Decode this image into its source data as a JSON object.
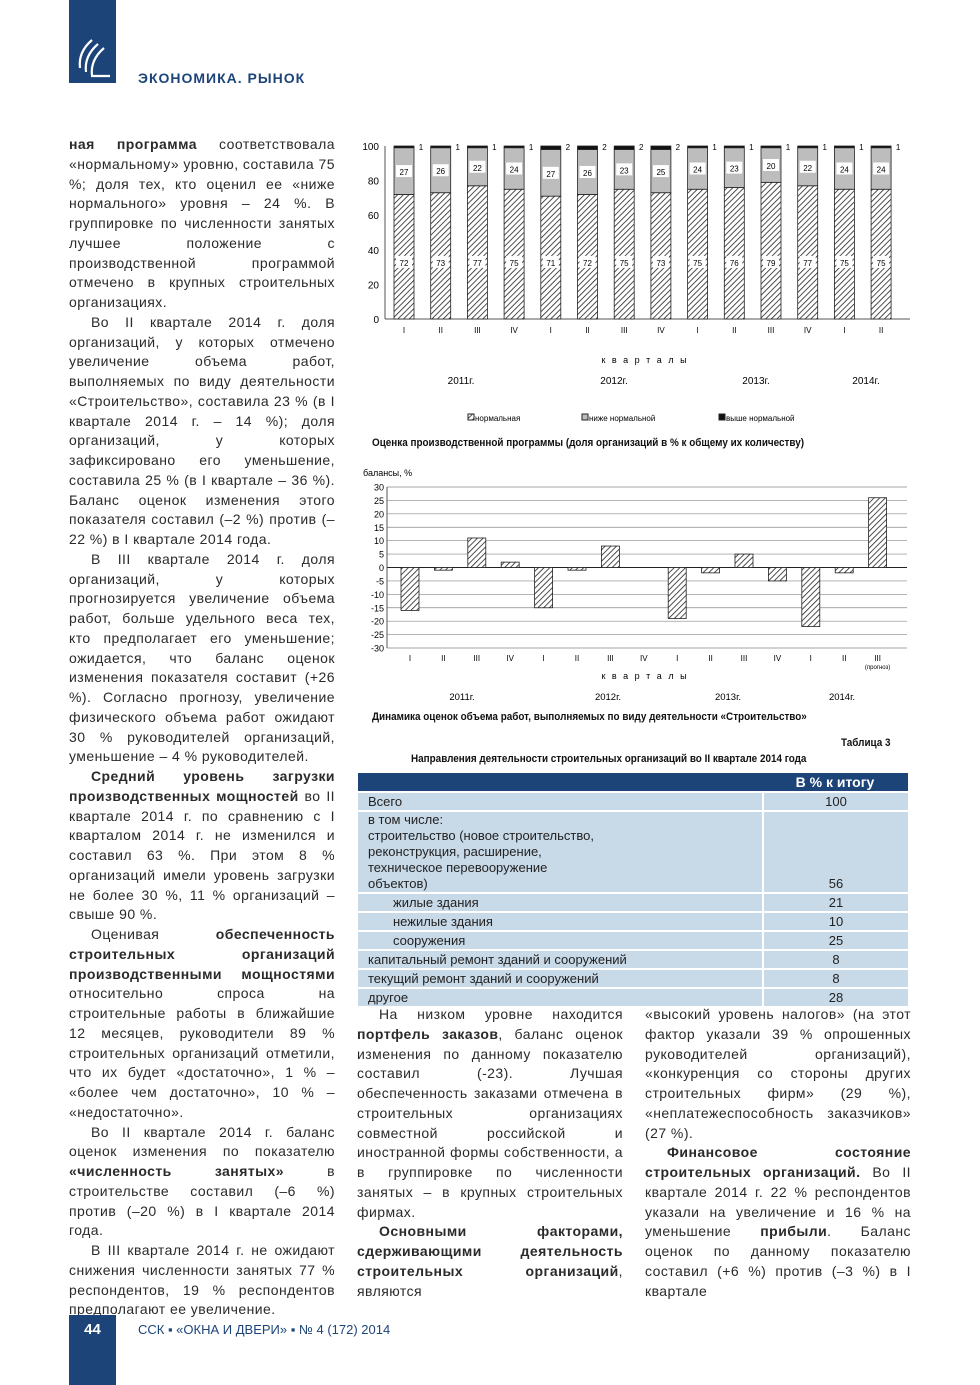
{
  "header": {
    "section": "ЭКОНОМИКА. РЫНОК"
  },
  "footer": {
    "page": "44",
    "journal": "ССК ▪ «ОКНА И ДВЕРИ» ▪ № 4 (172) 2014"
  },
  "columns": {
    "left": [
      {
        "noindent": true,
        "runs": [
          {
            "b": true,
            "t": "ная программа"
          },
          {
            "t": " соответствовала «нормальному» уровню, составила 75 %; доля тех, кто оценил ее «ниже нормального» уровня – 24 %. В группировке по численности занятых лучшее положение с производственной программой отмечено в крупных строительных организациях."
          }
        ]
      },
      {
        "runs": [
          {
            "t": "Во II квартале 2014 г. доля организаций, у которых отмечено увеличение объема работ, выполняемых по виду деятельности «Строительство», составила 23 % (в I квартале 2014 г. – 14 %); доля организаций, у которых зафиксировано его уменьшение, составила 25 % (в I квартале – 36 %). Баланс оценок изменения этого показателя составил (–2 %) против (–22 %) в I квартале 2014 года."
          }
        ]
      },
      {
        "runs": [
          {
            "t": "В III квартале 2014 г. доля организаций, у которых прогнозируется увеличение объема работ, больше удельного веса тех, кто предполагает его уменьшение; ожидается, что баланс оценок изменения показателя составит (+26 %). Согласно прогнозу, увеличение физического объема работ ожидают 30 % руководителей организаций, уменьшение – 4 % руководителей."
          }
        ]
      },
      {
        "runs": [
          {
            "b": true,
            "t": "Средний уровень загрузки производственных мощностей"
          },
          {
            "t": " во II квартале 2014 г. по сравнению с I кварталом 2014 г. не изменился и составил 63 %. При этом 8 % организаций имели уровень загрузки не более 30 %, 11 % организаций – свыше 90 %."
          }
        ]
      },
      {
        "runs": [
          {
            "t": "Оценивая "
          },
          {
            "b": true,
            "t": "обеспеченность строительных организаций производственными мощностями"
          },
          {
            "t": " относительно спроса на строительные работы в ближайшие 12 месяцев, руководители 89 % строительных организаций отметили, что их будет «достаточно», 1 % – «более чем достаточно», 10 % – «недостаточно»."
          }
        ]
      },
      {
        "runs": [
          {
            "t": "Во II квартале 2014 г. баланс оценок изменения по показателю "
          },
          {
            "b": true,
            "t": "«численность занятых»"
          },
          {
            "t": " в строительстве составил (–6 %) против (–20 %) в I квартале 2014 года."
          }
        ]
      },
      {
        "runs": [
          {
            "t": "В III квартале 2014 г. не ожидают снижения численности занятых 77 % респондентов, 19 % респондентов предполагают ее увеличение."
          }
        ]
      }
    ],
    "middle": [
      {
        "runs": [
          {
            "t": "На низком уровне находится "
          },
          {
            "b": true,
            "t": "портфель заказов"
          },
          {
            "t": ", баланс оценок изменения по данному показателю составил (-23). Лучшая обеспеченность заказами отмечена в строительных организациях совместной российской и иностранной формы собственности, а в группировке по численности занятых – в крупных строительных фирмах."
          }
        ]
      },
      {
        "runs": [
          {
            "b": true,
            "t": "Основными факторами, сдерживающими деятельность строительных организаций"
          },
          {
            "t": ", являются"
          }
        ]
      }
    ],
    "right": [
      {
        "noindent": true,
        "runs": [
          {
            "t": "«высокий уровень налогов» (на этот фактор указали 39 % опрошенных руководителей организаций), «конкуренция со стороны других строительных фирм» (29 %), «неплатежеспособность заказчиков» (27 %)."
          }
        ]
      },
      {
        "runs": [
          {
            "b": true,
            "t": "Финансовое состояние строительных организаций."
          },
          {
            "t": " Во II квартале 2014 г. 22 % респондентов указали на увеличение и 16 % на уменьшение "
          },
          {
            "b": true,
            "t": "прибыли"
          },
          {
            "t": ". Баланс оценок по данному показателю составил (+6 %) против (–3 %) в I квартале"
          }
        ]
      }
    ]
  },
  "chart_data": [
    {
      "type": "bar",
      "stacked": true,
      "title": "Оценка производственной программы (доля организаций в % к общему их количеству)",
      "xlabel": "к в а р т а л ы",
      "ylim": [
        0,
        100
      ],
      "yticks": [
        0,
        20,
        40,
        60,
        80,
        100
      ],
      "categories": [
        "I",
        "II",
        "III",
        "IV",
        "I",
        "II",
        "III",
        "IV",
        "I",
        "II",
        "III",
        "IV",
        "I",
        "II"
      ],
      "years": [
        "2011г.",
        "2012г.",
        "2013г.",
        "2014г."
      ],
      "series": [
        {
          "name": "нормальная",
          "values": [
            72,
            73,
            77,
            75,
            71,
            72,
            75,
            73,
            75,
            76,
            79,
            77,
            75,
            75
          ]
        },
        {
          "name": "ниже нормальной",
          "values": [
            27,
            26,
            22,
            24,
            27,
            26,
            23,
            25,
            24,
            23,
            20,
            22,
            24,
            24
          ]
        },
        {
          "name": "выше нормальной",
          "values": [
            1,
            1,
            1,
            1,
            2,
            2,
            2,
            2,
            1,
            1,
            1,
            1,
            1,
            1
          ]
        }
      ],
      "colors": [
        "#ffffff",
        "#bdbdbd",
        "#111111"
      ]
    },
    {
      "type": "bar",
      "title": "Динамика оценок объема работ, выполняемых по виду деятельности «Строительство»",
      "ylabel": "балансы, %",
      "xlabel": "к в а р т а л ы",
      "ylim": [
        -30,
        30
      ],
      "yticks": [
        30,
        25,
        20,
        15,
        10,
        5,
        0,
        -5,
        -10,
        -15,
        -20,
        -25,
        -30
      ],
      "categories": [
        "I",
        "II",
        "III",
        "IV",
        "I",
        "II",
        "III",
        "IV",
        "I",
        "II",
        "III",
        "IV",
        "I",
        "II",
        "III"
      ],
      "forecast_note": "(прогноз)",
      "years": [
        "2011г.",
        "2012г.",
        "2013г.",
        "2014г."
      ],
      "values": [
        -16,
        -1,
        11,
        2,
        -15,
        -1,
        8,
        0,
        -19,
        -2,
        5,
        -5,
        -22,
        -2,
        26
      ]
    }
  ],
  "table": {
    "label": "Таблица 3",
    "title": "Направления деятельности строительных организаций  во II квартале 2014 года",
    "header": "В % к итогу",
    "rows": [
      {
        "label": "Всего",
        "value": "100"
      },
      {
        "label": "в том числе:\nстроительство (новое строительство, реконструкция, расширение, техническое перевооружение объектов)",
        "value": "56"
      },
      {
        "label": "жилые здания",
        "value": "21",
        "indent": true
      },
      {
        "label": "нежилые здания",
        "value": "10",
        "indent": true
      },
      {
        "label": "сооружения",
        "value": "25",
        "indent": true
      },
      {
        "label": "капитальный ремонт зданий и сооружений",
        "value": "8"
      },
      {
        "label": "текущий ремонт зданий и сооружений",
        "value": "8"
      },
      {
        "label": "другое",
        "value": "28"
      }
    ]
  }
}
